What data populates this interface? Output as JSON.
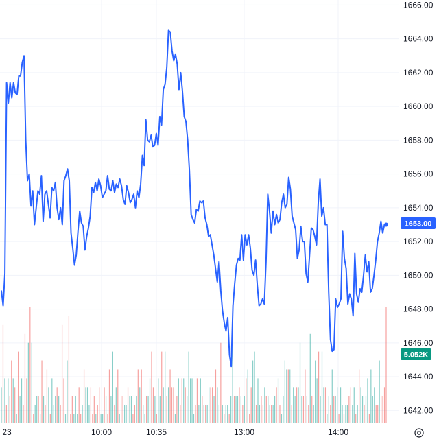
{
  "chart_data": {
    "type": "line",
    "ylim": [
      1641.2,
      1666.3
    ],
    "y_ticks": [
      "1642.00",
      "1644.00",
      "1646.00",
      "1648.00",
      "1650.00",
      "1652.00",
      "1654.00",
      "1656.00",
      "1658.00",
      "1660.00",
      "1662.00",
      "1664.00",
      "1666.00"
    ],
    "x_labels": [
      "23",
      "10:00",
      "10:35",
      "13:00",
      "14:00"
    ],
    "grid": true,
    "series": [
      {
        "values": [
          1649.1,
          1648.2,
          1650.1,
          1661.4,
          1660.2,
          1661.4,
          1660.5,
          1661.4,
          1660.8,
          1660.7,
          1661.8,
          1661.8,
          1662.6,
          1663.0,
          1658.0,
          1655.6,
          1656.0,
          1654.1,
          1655.0,
          1653.0,
          1654.0,
          1655.0,
          1654.8,
          1655.9,
          1653.2,
          1654.8,
          1655.0,
          1654.2,
          1653.4,
          1655.2,
          1655.0,
          1655.5,
          1654.0,
          1653.3,
          1654.0,
          1653.0,
          1655.6,
          1655.9,
          1656.3,
          1655.6,
          1652.5,
          1651.6,
          1650.6,
          1651.2,
          1652.6,
          1653.8,
          1653.1,
          1652.9,
          1651.5,
          1652.3,
          1652.8,
          1653.5,
          1655.2,
          1654.9,
          1655.5,
          1655.0,
          1655.7,
          1655.3,
          1654.6,
          1654.8,
          1655.0,
          1655.9,
          1655.1,
          1655.0,
          1655.6,
          1654.9,
          1655.4,
          1655.2,
          1655.7,
          1655.3,
          1654.5,
          1654.2,
          1655.3,
          1654.9,
          1654.3,
          1654.5,
          1654.8,
          1654.0,
          1655.0,
          1654.6,
          1655.4,
          1657.1,
          1656.5,
          1659.2,
          1658.0,
          1657.9,
          1658.3,
          1657.6,
          1657.7,
          1658.4,
          1657.7,
          1659.4,
          1658.9,
          1661.0,
          1661.3,
          1662.3,
          1664.5,
          1664.4,
          1663.3,
          1662.7,
          1663.1,
          1662.5,
          1661.0,
          1662.0,
          1660.9,
          1659.4,
          1659.1,
          1658.0,
          1656.2,
          1653.6,
          1653.3,
          1653.1,
          1653.9,
          1653.8,
          1654.4,
          1654.3,
          1654.4,
          1653.4,
          1653.0,
          1652.3,
          1652.4,
          1651.8,
          1651.2,
          1650.4,
          1649.6,
          1650.8,
          1649.1,
          1647.9,
          1647.2,
          1646.7,
          1647.5,
          1645.3,
          1644.6,
          1648.2,
          1649.5,
          1650.6,
          1651.0,
          1650.9,
          1652.4,
          1650.9,
          1652.4,
          1651.8,
          1652.4,
          1651.6,
          1650.3,
          1650.0,
          1650.9,
          1649.4,
          1648.2,
          1648.3,
          1648.6,
          1648.3,
          1650.8,
          1654.8,
          1653.8,
          1652.5,
          1653.8,
          1653.0,
          1653.6,
          1653.1,
          1653.3,
          1654.3,
          1654.8,
          1654.0,
          1654.2,
          1655.8,
          1655.1,
          1653.5,
          1653.1,
          1652.7,
          1651.0,
          1651.5,
          1652.9,
          1652.0,
          1652.0,
          1650.1,
          1649.6,
          1651.2,
          1652.8,
          1652.7,
          1652.3,
          1651.8,
          1654.3,
          1655.7,
          1653.5,
          1654.0,
          1653.0,
          1653.0,
          1649.0,
          1646.2,
          1645.5,
          1645.6,
          1648.6,
          1648.1,
          1648.3,
          1648.6,
          1652.6,
          1651.0,
          1650.4,
          1648.3,
          1648.9,
          1648.6,
          1647.6,
          1651.3,
          1648.9,
          1648.4,
          1649.2,
          1649.0,
          1650.0,
          1651.2,
          1650.2,
          1650.8,
          1649.0,
          1649.2,
          1650.0,
          1650.9,
          1652.0,
          1652.5,
          1653.2,
          1652.5,
          1653.0,
          1653.0
        ]
      }
    ],
    "volume": [
      4,
      11,
      5,
      2,
      5,
      3,
      7,
      5,
      4,
      1,
      8,
      3,
      5,
      2,
      10,
      5,
      9,
      13,
      9,
      1,
      2,
      3,
      3,
      1,
      7,
      3,
      2,
      6,
      4,
      1,
      5,
      2,
      3,
      4,
      3,
      2,
      11,
      5,
      1,
      7,
      12,
      1,
      3,
      1,
      3,
      1,
      4,
      1,
      2,
      6,
      4,
      4,
      2,
      4,
      1,
      3,
      1,
      2,
      4,
      1,
      1,
      4,
      3,
      1,
      6,
      3,
      8,
      2,
      4,
      6,
      1,
      3,
      3,
      2,
      2,
      4,
      3,
      3,
      1,
      2,
      3,
      6,
      4,
      6,
      2,
      1,
      3,
      3,
      5,
      8,
      4,
      3,
      1,
      5,
      3,
      8,
      4,
      8,
      3,
      4,
      6,
      4,
      4,
      1,
      3,
      5,
      2,
      5,
      5,
      4,
      3,
      8,
      5,
      5,
      1,
      2,
      5,
      2,
      5,
      3,
      2,
      2,
      2,
      4,
      4,
      4,
      3,
      6,
      4,
      2,
      9,
      2,
      1,
      2,
      2,
      1,
      3,
      9,
      3,
      3,
      3,
      4,
      3,
      2,
      3,
      5,
      6,
      1,
      4,
      7,
      8,
      2,
      5,
      2,
      3,
      2,
      4,
      3,
      3,
      2,
      2,
      2,
      3,
      4,
      5,
      2,
      1,
      3,
      7,
      6,
      6,
      6,
      2,
      4,
      3,
      4,
      4,
      9,
      3,
      3,
      6,
      3,
      2,
      10,
      3,
      2,
      7,
      5,
      8,
      3,
      8,
      4,
      4,
      1,
      3,
      2,
      6,
      3,
      3,
      4,
      1,
      4,
      2,
      1,
      2,
      2,
      3,
      4,
      2,
      4,
      1,
      2,
      6,
      4,
      3,
      2,
      3,
      5,
      1,
      6,
      3,
      4,
      2,
      2,
      7,
      3,
      3,
      4,
      13
    ],
    "volume_direction": [
      "u",
      "d",
      "u",
      "d",
      "u",
      "d",
      "d",
      "u",
      "d",
      "u",
      "d",
      "u",
      "u",
      "d",
      "d",
      "d",
      "u",
      "d",
      "u",
      "d",
      "u",
      "u",
      "d",
      "u",
      "d",
      "u",
      "d",
      "d",
      "u",
      "d",
      "u",
      "u",
      "u",
      "d",
      "u",
      "d",
      "d",
      "d",
      "u",
      "u",
      "d",
      "d",
      "d",
      "u",
      "u",
      "u",
      "d",
      "d",
      "u",
      "d",
      "u",
      "u",
      "u",
      "d",
      "d",
      "d",
      "u",
      "d",
      "d",
      "u",
      "u",
      "d",
      "u",
      "d",
      "d",
      "u",
      "u",
      "d",
      "u",
      "d",
      "u",
      "d",
      "d",
      "u",
      "u",
      "d",
      "u",
      "u",
      "d",
      "d",
      "u",
      "d",
      "u",
      "d",
      "u",
      "u",
      "d",
      "u",
      "u",
      "d",
      "d",
      "u",
      "d",
      "u",
      "u",
      "d",
      "u",
      "u",
      "d",
      "u",
      "d",
      "d",
      "d",
      "u",
      "d",
      "u",
      "d",
      "d",
      "u",
      "d",
      "u",
      "u",
      "u",
      "u",
      "u",
      "d",
      "d",
      "u",
      "u",
      "d",
      "u",
      "d",
      "u",
      "u",
      "d",
      "d",
      "u",
      "d",
      "u",
      "u",
      "d",
      "u",
      "d",
      "u",
      "u",
      "d",
      "u",
      "u",
      "d",
      "u",
      "u",
      "d",
      "u",
      "d",
      "u",
      "d",
      "u",
      "d",
      "d",
      "u",
      "u",
      "d",
      "u",
      "u",
      "d",
      "d",
      "u",
      "d",
      "u",
      "u",
      "d",
      "u",
      "u",
      "d",
      "u",
      "d",
      "u",
      "u",
      "u",
      "u",
      "d",
      "u",
      "d",
      "u",
      "u",
      "d",
      "u",
      "u",
      "u",
      "d",
      "d",
      "u",
      "d",
      "u",
      "d",
      "u",
      "u",
      "u",
      "d",
      "u",
      "u",
      "u",
      "d",
      "u",
      "u",
      "d",
      "u",
      "d",
      "u",
      "u",
      "d",
      "u",
      "u",
      "d",
      "u",
      "u",
      "d",
      "d",
      "u",
      "u",
      "d",
      "u",
      "d",
      "u",
      "u",
      "d",
      "u",
      "u",
      "d",
      "u",
      "u",
      "u",
      "d",
      "d",
      "u"
    ],
    "colors": {
      "line": "#2962ff",
      "up": "#26a69a",
      "down": "#ef5350",
      "grid": "#f0f3fa"
    },
    "price_badge": {
      "value": "1653.00",
      "color": "#2962ff"
    },
    "volume_badge": {
      "value": "5.052K",
      "color": "#089981"
    }
  },
  "settings_icon": "gear-icon"
}
